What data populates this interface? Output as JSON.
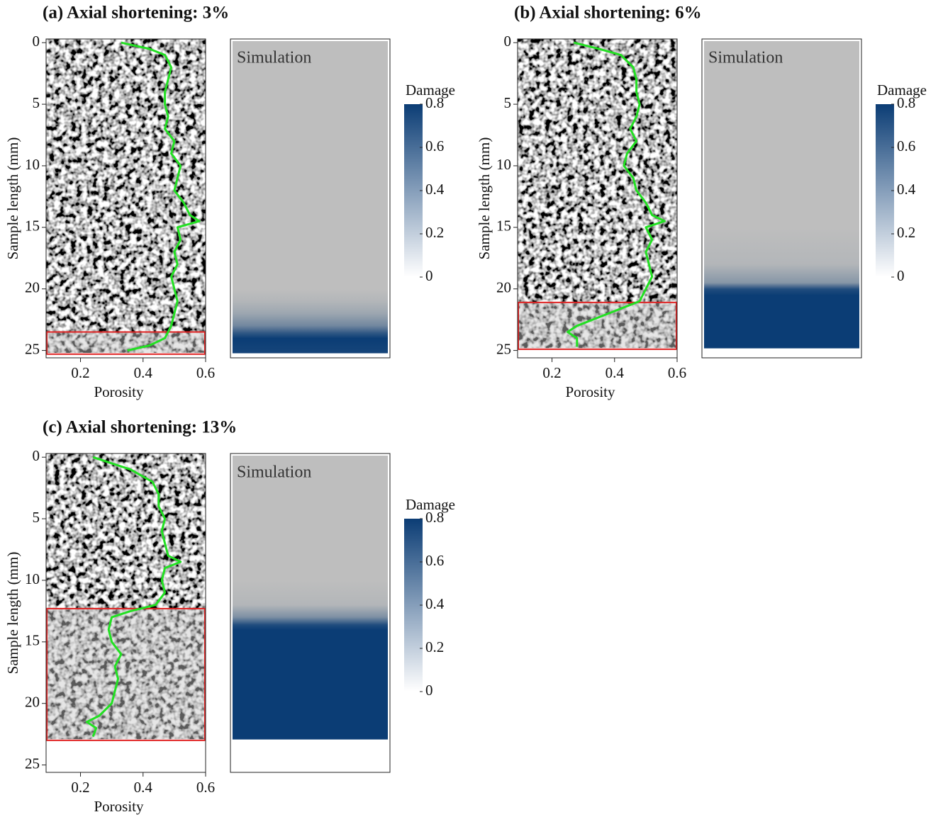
{
  "chart_data": [
    {
      "type": "line",
      "title": "(a) Axial shortening: 3%",
      "xlabel": "Porosity",
      "ylabel": "Sample length (mm)",
      "xlim": [
        0.09,
        0.6
      ],
      "ylim": [
        25.6,
        -0.3
      ],
      "xticks": [
        0.2,
        0.4,
        0.6
      ],
      "yticks": [
        0,
        5,
        10,
        15,
        20,
        25
      ],
      "series": [
        {
          "color": "#22e022",
          "x": [
            0.33,
            0.42,
            0.47,
            0.49,
            0.48,
            0.47,
            0.47,
            0.48,
            0.47,
            0.5,
            0.49,
            0.52,
            0.51,
            0.5,
            0.53,
            0.55,
            0.58,
            0.51,
            0.52,
            0.5,
            0.51,
            0.49,
            0.5,
            0.51,
            0.5,
            0.49,
            0.47,
            0.42,
            0.35
          ],
          "y": [
            0,
            0.5,
            1,
            2,
            3,
            4,
            5,
            6,
            7,
            8,
            9,
            10,
            11,
            12,
            13,
            14,
            14.5,
            15,
            16,
            17,
            18,
            19,
            20,
            21,
            22,
            23,
            24,
            24.6,
            25
          ]
        }
      ],
      "highlight": {
        "color": "#e02020",
        "y": [
          23.5,
          25.3
        ]
      },
      "simulation": {
        "label": "Simulation",
        "depth": [
          0,
          20,
          21,
          22,
          23,
          23.5,
          24,
          24.5,
          25.2
        ],
        "damage": [
          0,
          0,
          0.05,
          0.15,
          0.35,
          0.6,
          0.8,
          0.78,
          0.75
        ]
      },
      "colorbar": {
        "label": "Damage",
        "lim": [
          0,
          0.8
        ],
        "ticks": [
          0,
          0.2,
          0.4,
          0.6,
          0.8
        ],
        "colors": [
          "#ffffff",
          "#0b3d75"
        ]
      }
    },
    {
      "type": "line",
      "title": "(b) Axial shortening: 6%",
      "xlabel": "Porosity",
      "ylabel": "Sample length (mm)",
      "xlim": [
        0.09,
        0.6
      ],
      "ylim": [
        25.6,
        -0.3
      ],
      "xticks": [
        0.2,
        0.4,
        0.6
      ],
      "yticks": [
        0,
        5,
        10,
        15,
        20,
        25
      ],
      "series": [
        {
          "color": "#22e022",
          "x": [
            0.27,
            0.35,
            0.42,
            0.46,
            0.47,
            0.47,
            0.48,
            0.47,
            0.45,
            0.47,
            0.44,
            0.43,
            0.46,
            0.47,
            0.5,
            0.52,
            0.56,
            0.5,
            0.52,
            0.5,
            0.51,
            0.52,
            0.5,
            0.48,
            0.38,
            0.28,
            0.25,
            0.28,
            0.28
          ],
          "y": [
            0,
            0.5,
            1,
            2,
            3,
            4,
            5,
            6,
            7,
            8,
            9,
            10,
            11,
            12,
            13,
            14,
            14.5,
            15,
            16,
            17,
            18,
            19,
            20,
            21,
            22,
            23,
            23.5,
            24,
            24.7
          ]
        }
      ],
      "highlight": {
        "color": "#e02020",
        "y": [
          21.1,
          24.9
        ]
      },
      "simulation": {
        "label": "Simulation",
        "depth": [
          0,
          15,
          18,
          19.5,
          20,
          20.5,
          24.8
        ],
        "damage": [
          0,
          0,
          0.05,
          0.25,
          0.7,
          0.8,
          0.8
        ]
      },
      "colorbar": {
        "label": "Damage",
        "lim": [
          0,
          0.8
        ],
        "ticks": [
          0,
          0.2,
          0.4,
          0.6,
          0.8
        ],
        "colors": [
          "#ffffff",
          "#0b3d75"
        ]
      }
    },
    {
      "type": "line",
      "title": "(c) Axial shortening: 13%",
      "xlabel": "Porosity",
      "ylabel": "Sample length (mm)",
      "xlim": [
        0.09,
        0.6
      ],
      "ylim": [
        25.6,
        -0.3
      ],
      "xticks": [
        0.2,
        0.4,
        0.6
      ],
      "yticks": [
        0,
        5,
        10,
        15,
        20,
        25
      ],
      "series": [
        {
          "color": "#22e022",
          "x": [
            0.24,
            0.3,
            0.36,
            0.43,
            0.45,
            0.45,
            0.47,
            0.46,
            0.47,
            0.48,
            0.52,
            0.47,
            0.46,
            0.47,
            0.44,
            0.36,
            0.3,
            0.29,
            0.3,
            0.33,
            0.31,
            0.32,
            0.31,
            0.3,
            0.26,
            0.22,
            0.25,
            0.24
          ],
          "y": [
            0,
            0.5,
            1,
            2,
            3,
            4,
            5,
            6,
            7,
            8,
            8.5,
            9,
            10,
            11,
            12,
            12.5,
            13,
            14,
            15,
            16,
            17,
            18,
            19,
            20,
            21,
            21.5,
            22,
            22.7
          ]
        }
      ],
      "highlight": {
        "color": "#e02020",
        "y": [
          12.3,
          23.0
        ]
      },
      "simulation": {
        "label": "Simulation",
        "depth": [
          0,
          10,
          12,
          13,
          13.6,
          14,
          22.9
        ],
        "damage": [
          0,
          0,
          0.05,
          0.3,
          0.7,
          0.8,
          0.8
        ]
      },
      "colorbar": {
        "label": "Damage",
        "lim": [
          0,
          0.8
        ],
        "ticks": [
          0,
          0.2,
          0.4,
          0.6,
          0.8
        ],
        "colors": [
          "#ffffff",
          "#0b3d75"
        ]
      }
    }
  ]
}
